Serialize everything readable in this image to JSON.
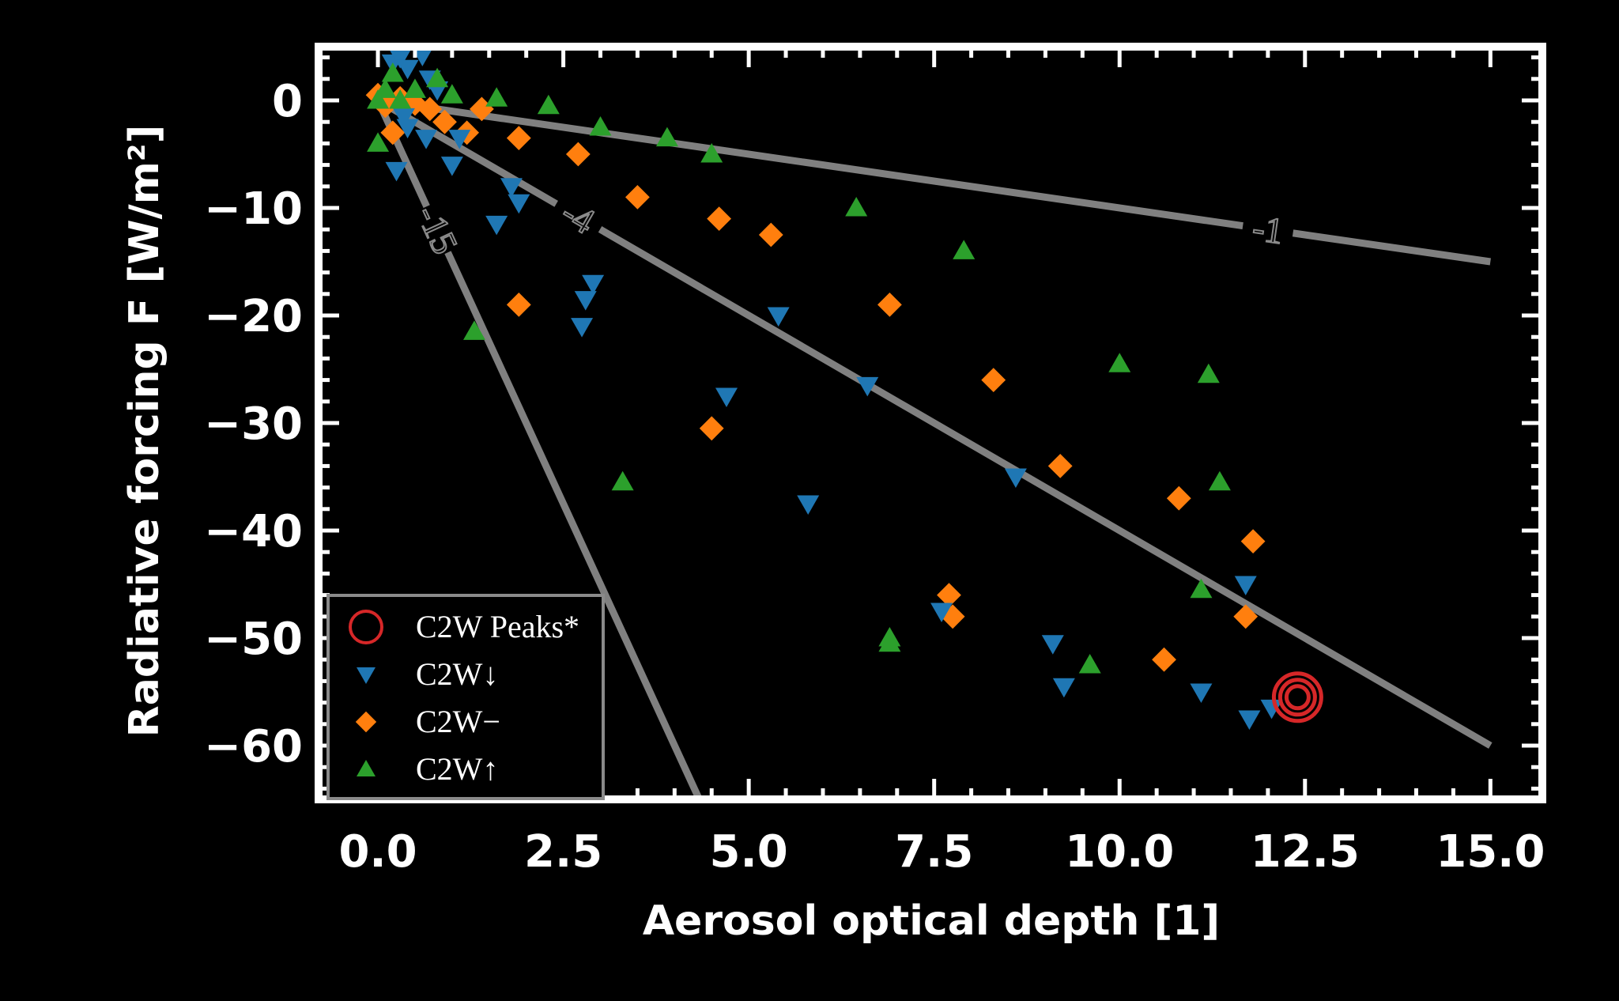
{
  "chart_data": {
    "type": "scatter",
    "xlabel": "Aerosol optical depth [1]",
    "ylabel": "Radiative forcing F [W/m²]",
    "xlim": [
      -0.8,
      15.7
    ],
    "ylim": [
      -65,
      5
    ],
    "xticks": [
      0.0,
      2.5,
      5.0,
      7.5,
      10.0,
      12.5,
      15.0
    ],
    "xtick_labels": [
      "0.0",
      "2.5",
      "5.0",
      "7.5",
      "10.0",
      "12.5",
      "15.0"
    ],
    "yticks": [
      0,
      -10,
      -20,
      -30,
      -40,
      -50,
      -60
    ],
    "ytick_labels": [
      "0",
      "−10",
      "−20",
      "−30",
      "−40",
      "−50",
      "−60"
    ],
    "grid": false,
    "legend_position": "bottom-left",
    "colors": {
      "background": "#000000",
      "frame": "#ffffff",
      "peaks": "#d62728",
      "down": "#1f77b4",
      "neutral": "#ff7f0e",
      "up": "#2ca02c",
      "reference_line": "#808080"
    },
    "reference_lines": [
      {
        "label": "-1",
        "slope": -1
      },
      {
        "label": "-4",
        "slope": -4
      },
      {
        "label": "-15",
        "slope": -15
      }
    ],
    "series": [
      {
        "name": "C2W Peaks*",
        "marker": "circle-open",
        "points": [
          [
            12.4,
            -55.5
          ]
        ]
      },
      {
        "name": "C2W↓",
        "marker": "triangle-down",
        "points": [
          [
            0.2,
            3.5
          ],
          [
            0.3,
            4.0
          ],
          [
            0.4,
            3.0
          ],
          [
            0.6,
            4.2
          ],
          [
            0.7,
            2.0
          ],
          [
            0.8,
            1.0
          ],
          [
            0.35,
            -1.5
          ],
          [
            0.4,
            -2.5
          ],
          [
            0.25,
            -6.5
          ],
          [
            0.65,
            -3.5
          ],
          [
            1.0,
            -6.0
          ],
          [
            1.1,
            -3.5
          ],
          [
            1.6,
            -11.5
          ],
          [
            1.8,
            -8.0
          ],
          [
            1.9,
            -9.5
          ],
          [
            2.9,
            -17.0
          ],
          [
            2.8,
            -18.5
          ],
          [
            2.75,
            -21.0
          ],
          [
            4.7,
            -27.5
          ],
          [
            5.4,
            -20.0
          ],
          [
            5.8,
            -37.5
          ],
          [
            6.6,
            -26.5
          ],
          [
            7.6,
            -47.5
          ],
          [
            8.6,
            -35.0
          ],
          [
            9.1,
            -50.5
          ],
          [
            9.25,
            -54.5
          ],
          [
            11.1,
            -55.0
          ],
          [
            11.7,
            -45.0
          ],
          [
            11.75,
            -57.5
          ],
          [
            12.05,
            -56.5
          ]
        ]
      },
      {
        "name": "C2W−",
        "marker": "diamond",
        "points": [
          [
            0.0,
            0.5
          ],
          [
            0.1,
            -0.5
          ],
          [
            0.3,
            0.2
          ],
          [
            0.5,
            -0.3
          ],
          [
            0.7,
            -0.8
          ],
          [
            0.2,
            -3.0
          ],
          [
            0.9,
            -2.0
          ],
          [
            1.2,
            -3.0
          ],
          [
            1.4,
            -0.8
          ],
          [
            1.9,
            -3.5
          ],
          [
            2.7,
            -5.0
          ],
          [
            3.5,
            -9.0
          ],
          [
            1.9,
            -19.0
          ],
          [
            4.6,
            -11.0
          ],
          [
            5.3,
            -12.5
          ],
          [
            4.5,
            -30.5
          ],
          [
            6.9,
            -19.0
          ],
          [
            8.3,
            -26.0
          ],
          [
            7.7,
            -46.0
          ],
          [
            7.75,
            -48.0
          ],
          [
            9.2,
            -34.0
          ],
          [
            10.6,
            -52.0
          ],
          [
            10.8,
            -37.0
          ],
          [
            11.7,
            -48.0
          ],
          [
            11.8,
            -41.0
          ]
        ]
      },
      {
        "name": "C2W↑",
        "marker": "triangle-up",
        "points": [
          [
            0.0,
            0.0
          ],
          [
            0.1,
            1.0
          ],
          [
            0.2,
            2.5
          ],
          [
            0.3,
            0.0
          ],
          [
            0.5,
            1.0
          ],
          [
            0.8,
            2.0
          ],
          [
            1.0,
            0.5
          ],
          [
            1.6,
            0.2
          ],
          [
            2.3,
            -0.5
          ],
          [
            3.0,
            -2.5
          ],
          [
            3.9,
            -3.5
          ],
          [
            4.5,
            -5.0
          ],
          [
            0.0,
            -4.0
          ],
          [
            1.3,
            -21.5
          ],
          [
            3.3,
            -35.5
          ],
          [
            6.45,
            -10.0
          ],
          [
            7.9,
            -14.0
          ],
          [
            6.9,
            -50.0
          ],
          [
            6.9,
            -50.5
          ],
          [
            9.6,
            -52.5
          ],
          [
            10.0,
            -24.5
          ],
          [
            11.2,
            -25.5
          ],
          [
            11.35,
            -35.5
          ],
          [
            11.1,
            -45.5
          ]
        ]
      }
    ]
  }
}
